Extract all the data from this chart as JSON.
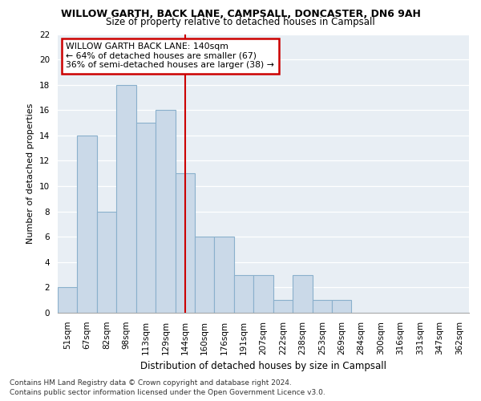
{
  "title": "WILLOW GARTH, BACK LANE, CAMPSALL, DONCASTER, DN6 9AH",
  "subtitle": "Size of property relative to detached houses in Campsall",
  "xlabel": "Distribution of detached houses by size in Campsall",
  "ylabel": "Number of detached properties",
  "categories": [
    "51sqm",
    "67sqm",
    "82sqm",
    "98sqm",
    "113sqm",
    "129sqm",
    "144sqm",
    "160sqm",
    "176sqm",
    "191sqm",
    "207sqm",
    "222sqm",
    "238sqm",
    "253sqm",
    "269sqm",
    "284sqm",
    "300sqm",
    "316sqm",
    "331sqm",
    "347sqm",
    "362sqm"
  ],
  "values": [
    2,
    14,
    8,
    18,
    15,
    16,
    11,
    6,
    6,
    3,
    3,
    1,
    3,
    1,
    1,
    0,
    0,
    0,
    0,
    0,
    0
  ],
  "bar_color": "#cad9e8",
  "bar_edge_color": "#8ab0cc",
  "property_line_label": "WILLOW GARTH BACK LANE: 140sqm",
  "annotation_line1": "← 64% of detached houses are smaller (67)",
  "annotation_line2": "36% of semi-detached houses are larger (38) →",
  "vline_color": "#cc0000",
  "vline_index": 6,
  "ylim": [
    0,
    22
  ],
  "yticks": [
    0,
    2,
    4,
    6,
    8,
    10,
    12,
    14,
    16,
    18,
    20,
    22
  ],
  "background_color": "#e8eef4",
  "grid_color": "#ffffff",
  "footer_line1": "Contains HM Land Registry data © Crown copyright and database right 2024.",
  "footer_line2": "Contains public sector information licensed under the Open Government Licence v3.0.",
  "title_fontsize": 9,
  "subtitle_fontsize": 8.5,
  "ylabel_fontsize": 8,
  "xlabel_fontsize": 8.5,
  "tick_fontsize": 7.5,
  "footer_fontsize": 6.5
}
